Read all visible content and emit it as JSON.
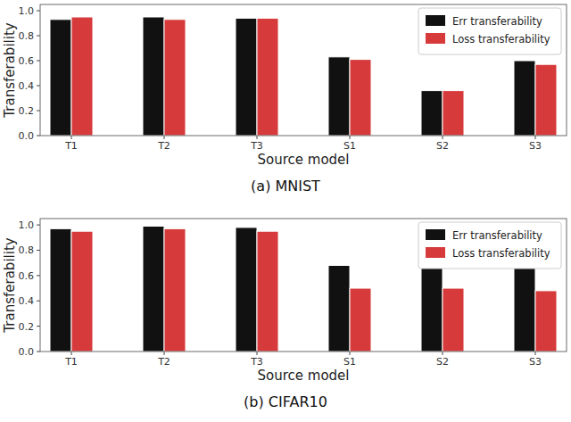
{
  "chart_data": [
    {
      "type": "bar",
      "title": "(a) MNIST",
      "x_label": "Source model",
      "y_label": "Transferability",
      "categories": [
        "T1",
        "T2",
        "T3",
        "S1",
        "S2",
        "S3"
      ],
      "series": [
        {
          "name": "Err transferability",
          "color": "#111111",
          "values": [
            0.93,
            0.95,
            0.94,
            0.63,
            0.36,
            0.6
          ]
        },
        {
          "name": "Loss transferability",
          "color": "#d63a3a",
          "values": [
            0.95,
            0.93,
            0.94,
            0.61,
            0.36,
            0.57
          ]
        }
      ],
      "ylim": [
        0,
        1.05
      ],
      "yticks": [
        {
          "value": 0,
          "label": "0.0"
        },
        {
          "value": 0.2,
          "label": "0.2"
        },
        {
          "value": 0.4,
          "label": "0.4"
        },
        {
          "value": 0.6,
          "label": "0.6"
        },
        {
          "value": 0.8,
          "label": "0.8"
        },
        {
          "value": 1,
          "label": "1.0"
        }
      ],
      "legend": "upper right",
      "grid": false
    },
    {
      "type": "bar",
      "title": "(b) CIFAR10",
      "x_label": "Source model",
      "y_label": "Transferability",
      "categories": [
        "T1",
        "T2",
        "T3",
        "S1",
        "S2",
        "S3"
      ],
      "series": [
        {
          "name": "Err transferability",
          "color": "#111111",
          "values": [
            0.97,
            0.99,
            0.98,
            0.68,
            0.67,
            0.67
          ]
        },
        {
          "name": "Loss transferability",
          "color": "#d63a3a",
          "values": [
            0.95,
            0.97,
            0.95,
            0.5,
            0.5,
            0.48
          ]
        }
      ],
      "ylim": [
        0,
        1.05
      ],
      "yticks": [
        {
          "value": 0,
          "label": "0.0"
        },
        {
          "value": 0.2,
          "label": "0.2"
        },
        {
          "value": 0.4,
          "label": "0.4"
        },
        {
          "value": 0.6,
          "label": "0.6"
        },
        {
          "value": 0.8,
          "label": "0.8"
        },
        {
          "value": 1,
          "label": "1.0"
        }
      ],
      "legend": "upper right",
      "grid": false
    }
  ]
}
